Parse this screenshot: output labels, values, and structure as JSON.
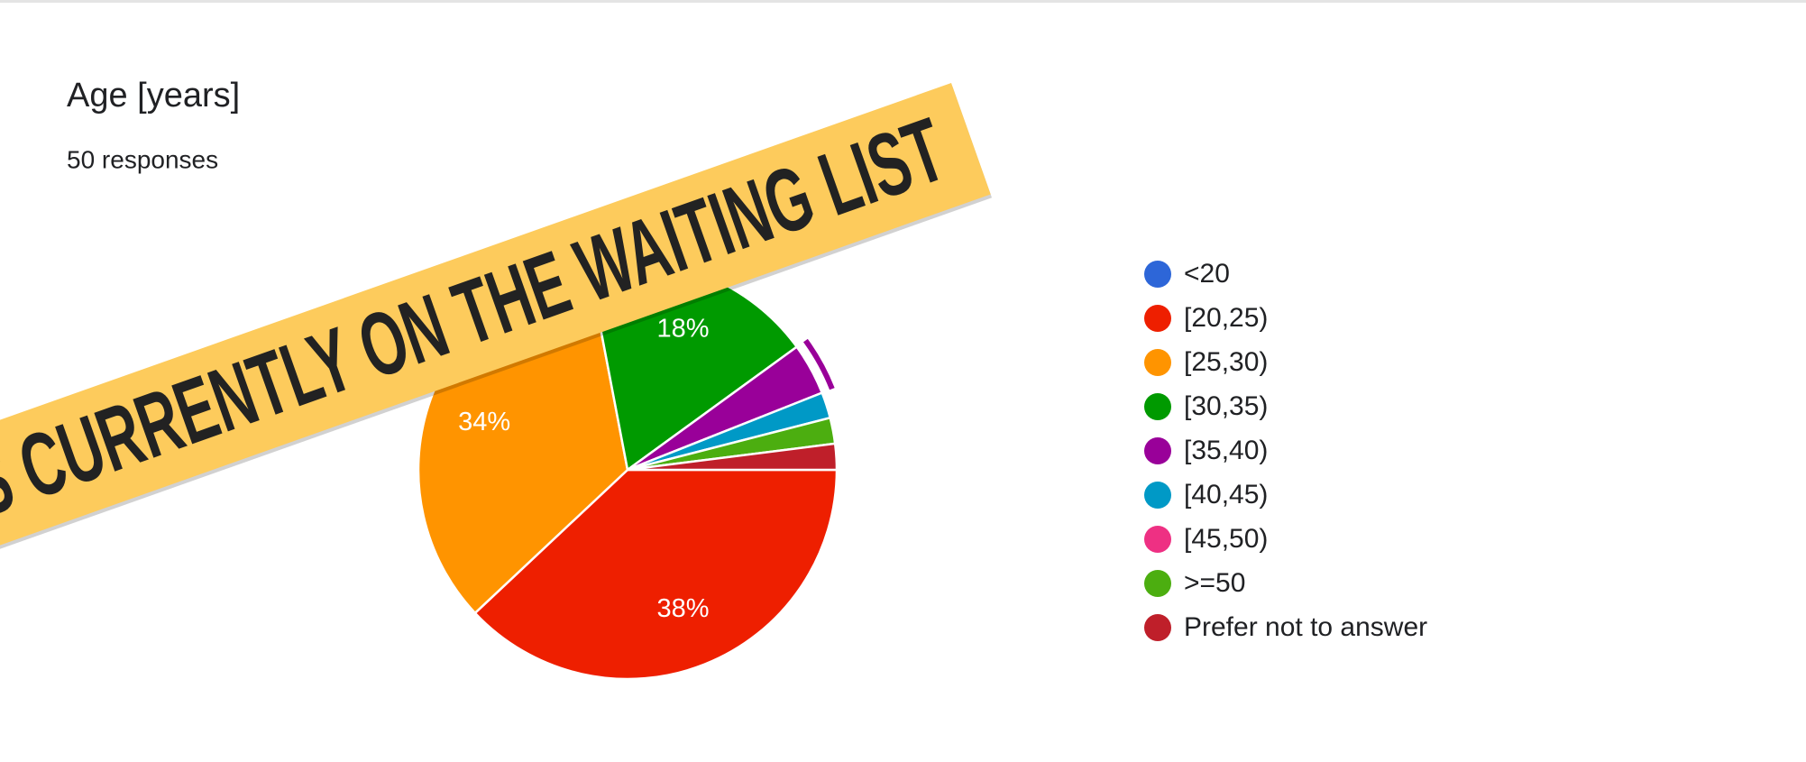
{
  "chart_data": {
    "type": "pie",
    "title": "Age [years]",
    "subtitle": "50 responses",
    "categories": [
      "<20",
      "[20,25)",
      "[25,30)",
      "[30,35)",
      "[35,40)",
      "[40,45)",
      "[45,50)",
      ">=50",
      "Prefer not to answer"
    ],
    "values": [
      0,
      38,
      34,
      18,
      4,
      2,
      0,
      2,
      2
    ],
    "value_labels": [
      null,
      "38%",
      "34%",
      "18%",
      null,
      null,
      null,
      null,
      null
    ],
    "colors": [
      "#2d66d8",
      "#ee1f00",
      "#ff9400",
      "#009a00",
      "#990099",
      "#0099c6",
      "#ee3083",
      "#4cae10",
      "#bf1f2a"
    ],
    "legend": "right",
    "highlight": 4
  },
  "banner": "ES CURRENTLY ON THE WAITING LIST"
}
